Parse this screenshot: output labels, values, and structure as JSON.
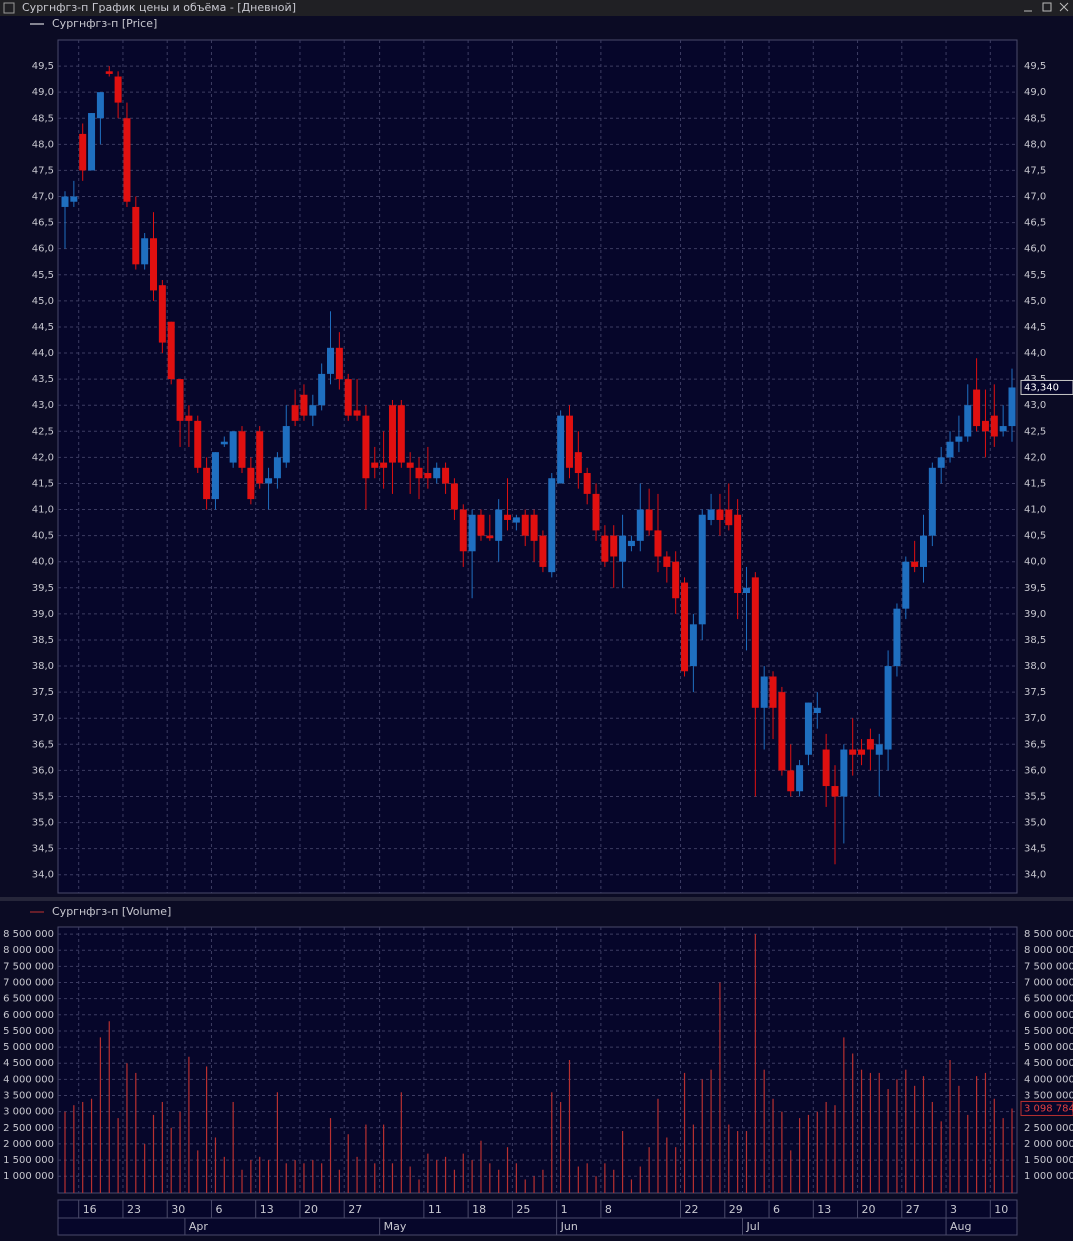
{
  "window_title": "Сургнфгз-п График цены и объёма - [Дневной]",
  "chart_data": [
    {
      "type": "candlestick",
      "legend": "Сургнфгз-п [Price]",
      "up_color": "#1f6fc0",
      "down_color": "#e01010",
      "legend_color": "#ffffff",
      "grid": true,
      "open": [
        46.8,
        46.9,
        48.2,
        47.5,
        48.5,
        49.4,
        49.3,
        48.5,
        46.8,
        45.7,
        46.2,
        45.3,
        44.6,
        43.5,
        42.8,
        42.7,
        41.8,
        41.2,
        42.25,
        41.9,
        42.5,
        41.8,
        42.5,
        41.5,
        41.6,
        41.9,
        43.0,
        43.2,
        42.8,
        43.0,
        43.6,
        44.1,
        43.5,
        42.9,
        42.8,
        41.9,
        41.9,
        43.0,
        43.0,
        41.9,
        41.8,
        41.7,
        41.6,
        41.8,
        41.5,
        41.0,
        40.2,
        40.9,
        40.5,
        40.4,
        40.9,
        40.75,
        40.9,
        40.9,
        40.5,
        39.8,
        41.5,
        42.8,
        42.1,
        41.7,
        41.3,
        40.5,
        40.5,
        40.0,
        40.3,
        40.4,
        41.0,
        40.6,
        40.1,
        40.0,
        39.6,
        38.0,
        38.8,
        40.8,
        41.0,
        41.0,
        40.9,
        39.4,
        39.7,
        37.2,
        37.8,
        37.5,
        36.0,
        35.6,
        36.3,
        37.1,
        36.4,
        35.7,
        35.5,
        36.4,
        36.4,
        36.6,
        36.3,
        36.4,
        38.0,
        39.1,
        40.0,
        39.9,
        40.5,
        41.8,
        42.0,
        42.3,
        42.4,
        43.3,
        42.7,
        42.8,
        42.5,
        42.6
      ],
      "high": [
        47.1,
        47.3,
        48.4,
        48.6,
        49.0,
        49.5,
        49.4,
        48.8,
        47.0,
        46.3,
        46.7,
        45.4,
        44.6,
        43.5,
        43.0,
        42.8,
        42.0,
        42.1,
        42.4,
        42.5,
        42.6,
        42.0,
        42.6,
        41.8,
        42.1,
        43.0,
        43.3,
        43.4,
        43.2,
        43.8,
        44.8,
        44.4,
        43.6,
        43.5,
        43.0,
        42.2,
        42.5,
        43.1,
        43.1,
        42.1,
        42.0,
        42.2,
        41.9,
        41.9,
        41.6,
        41.1,
        41.0,
        41.0,
        40.9,
        41.2,
        41.6,
        40.9,
        41.0,
        41.0,
        40.6,
        41.7,
        42.9,
        43.0,
        42.5,
        41.8,
        41.5,
        40.7,
        40.7,
        40.9,
        40.5,
        41.5,
        41.4,
        41.3,
        40.2,
        40.2,
        39.7,
        39.0,
        41.0,
        41.3,
        41.3,
        41.5,
        41.2,
        39.9,
        39.8,
        38.0,
        37.9,
        37.6,
        36.5,
        36.2,
        37.3,
        37.5,
        36.7,
        36.1,
        36.5,
        37.0,
        36.6,
        36.8,
        36.7,
        38.3,
        39.2,
        40.1,
        40.4,
        40.9,
        41.9,
        42.2,
        42.5,
        42.8,
        43.4,
        43.9,
        43.3,
        43.4,
        43.0,
        43.7
      ],
      "low": [
        46.0,
        46.8,
        47.3,
        47.5,
        48.0,
        49.3,
        48.5,
        46.8,
        45.6,
        45.6,
        45.0,
        44.0,
        43.4,
        42.2,
        42.2,
        41.7,
        41.0,
        41.0,
        42.2,
        41.8,
        41.7,
        41.1,
        41.4,
        41.0,
        41.4,
        41.8,
        42.6,
        42.7,
        42.6,
        42.9,
        43.4,
        43.3,
        42.7,
        42.7,
        41.0,
        41.6,
        41.4,
        41.3,
        41.8,
        41.3,
        41.2,
        41.4,
        41.5,
        41.3,
        40.8,
        39.9,
        39.3,
        40.4,
        40.4,
        40.0,
        40.6,
        40.6,
        40.3,
        40.0,
        39.8,
        39.7,
        41.5,
        41.6,
        41.4,
        41.1,
        40.4,
        39.9,
        39.5,
        39.5,
        40.2,
        40.2,
        40.5,
        39.8,
        39.6,
        39.0,
        37.8,
        37.5,
        38.5,
        40.7,
        40.5,
        40.6,
        38.9,
        38.3,
        35.5,
        36.4,
        36.6,
        35.9,
        35.5,
        35.5,
        36.1,
        36.8,
        35.3,
        34.2,
        34.6,
        35.9,
        36.1,
        36.0,
        35.5,
        36.0,
        37.8,
        38.9,
        39.8,
        39.6,
        40.3,
        41.5,
        41.9,
        42.1,
        42.3,
        42.5,
        42.0,
        42.2,
        42.4,
        42.3
      ],
      "close": [
        47.0,
        47.0,
        47.5,
        48.6,
        49.0,
        49.35,
        48.8,
        46.9,
        45.7,
        46.2,
        45.2,
        44.2,
        43.5,
        42.7,
        42.7,
        41.8,
        41.2,
        42.1,
        42.3,
        42.5,
        41.8,
        41.2,
        41.5,
        41.6,
        42.0,
        42.6,
        42.7,
        42.8,
        43.0,
        43.6,
        44.1,
        43.5,
        42.8,
        42.8,
        41.6,
        41.8,
        41.8,
        41.9,
        41.9,
        41.8,
        41.6,
        41.6,
        41.8,
        41.5,
        41.0,
        40.2,
        40.9,
        40.5,
        40.45,
        41.0,
        40.8,
        40.85,
        40.5,
        40.4,
        39.9,
        41.6,
        42.8,
        41.8,
        41.7,
        41.3,
        40.6,
        40.0,
        40.1,
        40.5,
        40.4,
        41.0,
        40.6,
        40.1,
        39.9,
        39.3,
        37.9,
        38.8,
        40.9,
        41.0,
        40.8,
        40.7,
        39.4,
        39.5,
        37.2,
        37.8,
        37.2,
        36.0,
        35.6,
        36.1,
        37.3,
        37.2,
        35.7,
        35.5,
        36.4,
        36.3,
        36.3,
        36.4,
        36.5,
        38.0,
        39.1,
        40.0,
        39.9,
        40.5,
        41.8,
        42.0,
        42.3,
        42.4,
        43.0,
        42.6,
        42.5,
        42.4,
        42.6,
        43.34
      ],
      "ylim": [
        33.65,
        50.0
      ],
      "yticks": [
        {
          "value": 34.0,
          "label": "34,0"
        },
        {
          "value": 34.5,
          "label": "34,5"
        },
        {
          "value": 35.0,
          "label": "35,0"
        },
        {
          "value": 35.5,
          "label": "35,5"
        },
        {
          "value": 36.0,
          "label": "36,0"
        },
        {
          "value": 36.5,
          "label": "36,5"
        },
        {
          "value": 37.0,
          "label": "37,0"
        },
        {
          "value": 37.5,
          "label": "37,5"
        },
        {
          "value": 38.0,
          "label": "38,0"
        },
        {
          "value": 38.5,
          "label": "38,5"
        },
        {
          "value": 39.0,
          "label": "39,0"
        },
        {
          "value": 39.5,
          "label": "39,5"
        },
        {
          "value": 40.0,
          "label": "40,0"
        },
        {
          "value": 40.5,
          "label": "40,5"
        },
        {
          "value": 41.0,
          "label": "41,0"
        },
        {
          "value": 41.5,
          "label": "41,5"
        },
        {
          "value": 42.0,
          "label": "42,0"
        },
        {
          "value": 42.5,
          "label": "42,5"
        },
        {
          "value": 43.0,
          "label": "43,0"
        },
        {
          "value": 43.5,
          "label": "43,5"
        },
        {
          "value": 44.0,
          "label": "44,0"
        },
        {
          "value": 44.5,
          "label": "44,5"
        },
        {
          "value": 45.0,
          "label": "45,0"
        },
        {
          "value": 45.5,
          "label": "45,5"
        },
        {
          "value": 46.0,
          "label": "46,0"
        },
        {
          "value": 46.5,
          "label": "46,5"
        },
        {
          "value": 47.0,
          "label": "47,0"
        },
        {
          "value": 47.5,
          "label": "47,5"
        },
        {
          "value": 48.0,
          "label": "48,0"
        },
        {
          "value": 48.5,
          "label": "48,5"
        },
        {
          "value": 49.0,
          "label": "49,0"
        },
        {
          "value": 49.5,
          "label": "49,5"
        }
      ],
      "last_value": {
        "value": 43.34,
        "label": "43,340"
      }
    },
    {
      "type": "bar",
      "legend": "Сургнфгз-п [Volume]",
      "color": "#b83030",
      "legend_color": "#c03030",
      "grid": true,
      "categories": [
        null,
        null,
        "16",
        null,
        null,
        null,
        null,
        "23",
        null,
        null,
        null,
        null,
        "30",
        null,
        null,
        null,
        null,
        "6",
        null,
        null,
        null,
        null,
        "13",
        null,
        null,
        null,
        null,
        "20",
        null,
        null,
        null,
        null,
        "27",
        null,
        null,
        null,
        null,
        null,
        null,
        null,
        null,
        "11",
        null,
        null,
        null,
        null,
        "18",
        null,
        null,
        null,
        null,
        "25",
        null,
        null,
        null,
        null,
        "1",
        null,
        null,
        null,
        null,
        "8",
        null,
        null,
        null,
        null,
        null,
        null,
        null,
        null,
        "22",
        null,
        null,
        null,
        null,
        "29",
        null,
        null,
        null,
        null,
        "6",
        null,
        null,
        null,
        null,
        "13",
        null,
        null,
        null,
        null,
        "20",
        null,
        null,
        null,
        null,
        "27",
        null,
        null,
        null,
        null,
        "3",
        null,
        null,
        null,
        null,
        "10",
        null,
        null
      ],
      "months": [
        null,
        null,
        null,
        null,
        null,
        null,
        null,
        null,
        null,
        null,
        null,
        null,
        null,
        null,
        "Apr",
        null,
        null,
        null,
        null,
        null,
        null,
        null,
        null,
        null,
        null,
        null,
        null,
        null,
        null,
        null,
        null,
        null,
        null,
        null,
        null,
        null,
        "May",
        null,
        null,
        null,
        null,
        null,
        null,
        null,
        null,
        null,
        null,
        null,
        null,
        null,
        null,
        null,
        null,
        null,
        null,
        null,
        "Jun",
        null,
        null,
        null,
        null,
        null,
        null,
        null,
        null,
        null,
        null,
        null,
        null,
        null,
        null,
        null,
        null,
        null,
        null,
        null,
        null,
        "Jul",
        null,
        null,
        null,
        null,
        null,
        null,
        null,
        null,
        null,
        null,
        null,
        null,
        null,
        null,
        null,
        null,
        null,
        null,
        null,
        null,
        null,
        null,
        "Aug",
        null,
        null,
        null,
        null,
        null,
        null,
        null
      ],
      "values": [
        3000000,
        3200000,
        3300000,
        3400000,
        5300000,
        5800000,
        2800000,
        4500000,
        4200000,
        2000000,
        2900000,
        3300000,
        2500000,
        3000000,
        4700000,
        1800000,
        4400000,
        2200000,
        1600000,
        3300000,
        1200000,
        1500000,
        1600000,
        1500000,
        3600000,
        1400000,
        1500000,
        1400000,
        1500000,
        1400000,
        2800000,
        1200000,
        2300000,
        1600000,
        2600000,
        1400000,
        2600000,
        1400000,
        3600000,
        1300000,
        900000,
        1700000,
        1500000,
        1600000,
        1200000,
        1700000,
        1500000,
        2100000,
        1400000,
        1200000,
        1900000,
        1400000,
        900000,
        1000000,
        1200000,
        3600000,
        3300000,
        4600000,
        1300000,
        1400000,
        1000000,
        1400000,
        1200000,
        2400000,
        900000,
        1300000,
        1900000,
        3400000,
        2200000,
        1900000,
        4200000,
        2600000,
        4000000,
        4300000,
        7000000,
        2600000,
        2400000,
        2400000,
        8500000,
        4300000,
        3400000,
        3000000,
        1800000,
        2800000,
        2900000,
        3000000,
        3300000,
        3200000,
        5300000,
        4800000,
        4300000,
        4200000,
        4200000,
        3700000,
        4000000,
        4300000,
        3800000,
        4100000,
        3300000,
        2700000,
        4600000,
        3800000,
        2900000,
        4100000,
        4200000,
        3400000,
        2800000,
        3098784
      ],
      "ylim": [
        480000,
        8720000
      ],
      "yticks": [
        {
          "value": 1000000,
          "label": "1 000 000"
        },
        {
          "value": 1500000,
          "label": "1 500 000"
        },
        {
          "value": 2000000,
          "label": "2 000 000"
        },
        {
          "value": 2500000,
          "label": "2 500 000"
        },
        {
          "value": 3000000,
          "label": "3 000 000"
        },
        {
          "value": 3500000,
          "label": "3 500 000"
        },
        {
          "value": 4000000,
          "label": "4 000 000"
        },
        {
          "value": 4500000,
          "label": "4 500 000"
        },
        {
          "value": 5000000,
          "label": "5 000 000"
        },
        {
          "value": 5500000,
          "label": "5 500 000"
        },
        {
          "value": 6000000,
          "label": "6 000 000"
        },
        {
          "value": 6500000,
          "label": "6 500 000"
        },
        {
          "value": 7000000,
          "label": "7 000 000"
        },
        {
          "value": 7500000,
          "label": "7 500 000"
        },
        {
          "value": 8000000,
          "label": "8 000 000"
        },
        {
          "value": 8500000,
          "label": "8 500 000"
        }
      ],
      "last_value": {
        "value": 3098784,
        "label": "3 098 784"
      }
    }
  ]
}
